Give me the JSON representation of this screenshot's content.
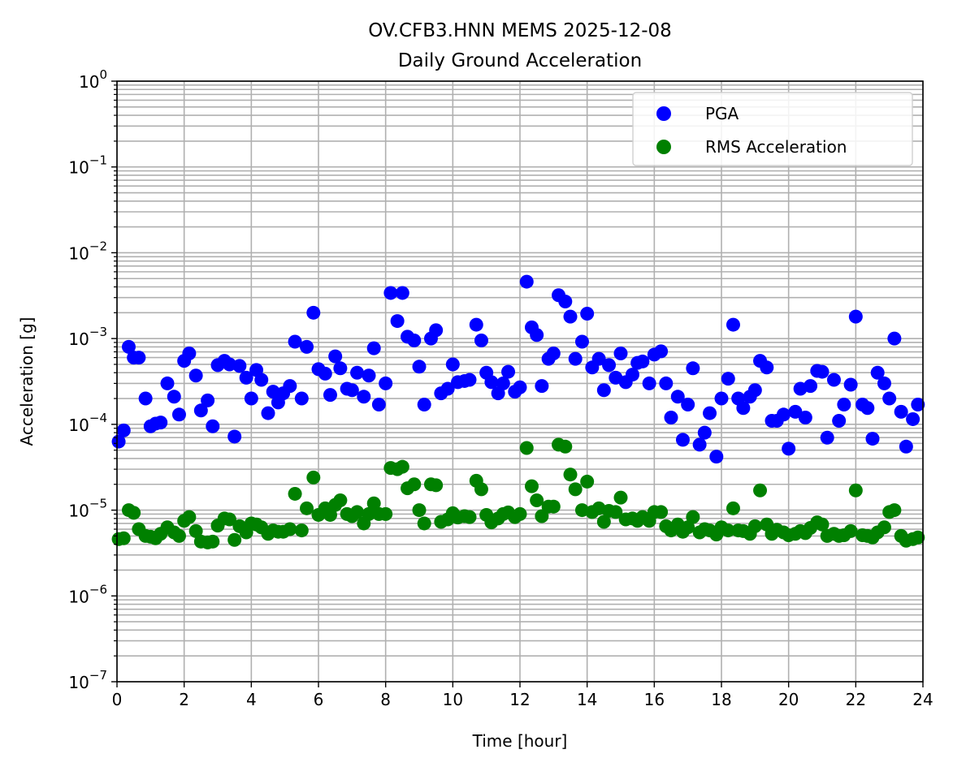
{
  "chart_data": {
    "type": "scatter",
    "title_line1": "OV.CFB3.HNN MEMS 2025-12-08",
    "title_line2": "Daily Ground Acceleration",
    "xlabel": "Time [hour]",
    "ylabel": "Acceleration [g]",
    "xlim": [
      0,
      24
    ],
    "ylim": [
      1e-07,
      1
    ],
    "yscale": "log",
    "grid": true,
    "legend_position": "top-right",
    "xticks": [
      0,
      2,
      4,
      6,
      8,
      10,
      12,
      14,
      16,
      18,
      20,
      22,
      24
    ],
    "yticks": [
      {
        "value": 1e-07,
        "base": "10",
        "exp": "−7"
      },
      {
        "value": 1e-06,
        "base": "10",
        "exp": "−6"
      },
      {
        "value": 1e-05,
        "base": "10",
        "exp": "−5"
      },
      {
        "value": 0.0001,
        "base": "10",
        "exp": "−4"
      },
      {
        "value": 0.001,
        "base": "10",
        "exp": "−3"
      },
      {
        "value": 0.01,
        "base": "10",
        "exp": "−2"
      },
      {
        "value": 0.1,
        "base": "10",
        "exp": "−1"
      },
      {
        "value": 1,
        "base": "10",
        "exp": "0"
      }
    ],
    "series": [
      {
        "name": "PGA",
        "color": "#0000ff",
        "points": [
          [
            0.05,
            6.3e-05
          ],
          [
            0.2,
            8.5e-05
          ],
          [
            0.35,
            0.0008
          ],
          [
            0.5,
            0.0006
          ],
          [
            0.65,
            0.0006
          ],
          [
            0.85,
            0.0002
          ],
          [
            1.0,
            9.5e-05
          ],
          [
            1.15,
            0.000102
          ],
          [
            1.3,
            0.000105
          ],
          [
            1.5,
            0.0003
          ],
          [
            1.7,
            0.00021
          ],
          [
            1.85,
            0.00013
          ],
          [
            2.0,
            0.00055
          ],
          [
            2.15,
            0.00067
          ],
          [
            2.35,
            0.00037
          ],
          [
            2.5,
            0.000145
          ],
          [
            2.7,
            0.00019
          ],
          [
            2.85,
            9.5e-05
          ],
          [
            3.0,
            0.00049
          ],
          [
            3.2,
            0.00055
          ],
          [
            3.35,
            0.0005
          ],
          [
            3.5,
            7.2e-05
          ],
          [
            3.65,
            0.00048
          ],
          [
            3.85,
            0.00035
          ],
          [
            4.0,
            0.0002
          ],
          [
            4.15,
            0.00043
          ],
          [
            4.3,
            0.00033
          ],
          [
            4.5,
            0.000135
          ],
          [
            4.65,
            0.00024
          ],
          [
            4.8,
            0.00018
          ],
          [
            4.95,
            0.00023
          ],
          [
            5.15,
            0.00028
          ],
          [
            5.3,
            0.00092
          ],
          [
            5.5,
            0.0002
          ],
          [
            5.65,
            0.0008
          ],
          [
            5.85,
            0.002
          ],
          [
            6.0,
            0.00044
          ],
          [
            6.2,
            0.00039
          ],
          [
            6.35,
            0.00022
          ],
          [
            6.5,
            0.00062
          ],
          [
            6.65,
            0.00045
          ],
          [
            6.85,
            0.00026
          ],
          [
            7.0,
            0.00025
          ],
          [
            7.15,
            0.0004
          ],
          [
            7.35,
            0.00021
          ],
          [
            7.5,
            0.00037
          ],
          [
            7.65,
            0.00077
          ],
          [
            7.8,
            0.00017
          ],
          [
            8.0,
            0.0003
          ],
          [
            8.15,
            0.0034
          ],
          [
            8.35,
            0.0016
          ],
          [
            8.5,
            0.0034
          ],
          [
            8.65,
            0.00105
          ],
          [
            8.85,
            0.00095
          ],
          [
            9.0,
            0.00047
          ],
          [
            9.15,
            0.00017
          ],
          [
            9.35,
            0.001
          ],
          [
            9.5,
            0.00125
          ],
          [
            9.65,
            0.00023
          ],
          [
            9.85,
            0.00026
          ],
          [
            10.0,
            0.0005
          ],
          [
            10.15,
            0.00031
          ],
          [
            10.35,
            0.00032
          ],
          [
            10.5,
            0.00033
          ],
          [
            10.7,
            0.00145
          ],
          [
            10.85,
            0.00095
          ],
          [
            11.0,
            0.0004
          ],
          [
            11.15,
            0.00031
          ],
          [
            11.35,
            0.00023
          ],
          [
            11.5,
            0.0003
          ],
          [
            11.65,
            0.00041
          ],
          [
            11.85,
            0.00024
          ],
          [
            12.0,
            0.00027
          ],
          [
            12.2,
            0.0046
          ],
          [
            12.35,
            0.00135
          ],
          [
            12.5,
            0.0011
          ],
          [
            12.65,
            0.00028
          ],
          [
            12.85,
            0.00058
          ],
          [
            13.0,
            0.00067
          ],
          [
            13.15,
            0.0032
          ],
          [
            13.35,
            0.0027
          ],
          [
            13.5,
            0.0018
          ],
          [
            13.65,
            0.00058
          ],
          [
            13.85,
            0.00092
          ],
          [
            14.0,
            0.00195
          ],
          [
            14.15,
            0.00046
          ],
          [
            14.35,
            0.00058
          ],
          [
            14.5,
            0.00025
          ],
          [
            14.65,
            0.00049
          ],
          [
            14.85,
            0.00035
          ],
          [
            15.0,
            0.00067
          ],
          [
            15.15,
            0.00031
          ],
          [
            15.35,
            0.00038
          ],
          [
            15.5,
            0.00052
          ],
          [
            15.65,
            0.00054
          ],
          [
            15.85,
            0.0003
          ],
          [
            16.0,
            0.00065
          ],
          [
            16.2,
            0.00071
          ],
          [
            16.35,
            0.0003
          ],
          [
            16.5,
            0.00012
          ],
          [
            16.7,
            0.00021
          ],
          [
            16.85,
            6.6e-05
          ],
          [
            17.0,
            0.00017
          ],
          [
            17.15,
            0.00045
          ],
          [
            17.35,
            5.8e-05
          ],
          [
            17.5,
            8e-05
          ],
          [
            17.65,
            0.000135
          ],
          [
            17.85,
            4.2e-05
          ],
          [
            18.0,
            0.0002
          ],
          [
            18.2,
            0.00034
          ],
          [
            18.35,
            0.00145
          ],
          [
            18.5,
            0.0002
          ],
          [
            18.65,
            0.000155
          ],
          [
            18.85,
            0.00021
          ],
          [
            19.0,
            0.00025
          ],
          [
            19.15,
            0.00055
          ],
          [
            19.35,
            0.00046
          ],
          [
            19.5,
            0.00011
          ],
          [
            19.65,
            0.00011
          ],
          [
            19.85,
            0.00013
          ],
          [
            20.0,
            5.2e-05
          ],
          [
            20.2,
            0.00014
          ],
          [
            20.35,
            0.00026
          ],
          [
            20.5,
            0.00012
          ],
          [
            20.65,
            0.00028
          ],
          [
            20.85,
            0.00042
          ],
          [
            21.0,
            0.00041
          ],
          [
            21.15,
            7e-05
          ],
          [
            21.35,
            0.00033
          ],
          [
            21.5,
            0.00011
          ],
          [
            21.65,
            0.00017
          ],
          [
            21.85,
            0.00029
          ],
          [
            22.0,
            0.0018
          ],
          [
            22.2,
            0.00017
          ],
          [
            22.35,
            0.000155
          ],
          [
            22.5,
            6.8e-05
          ],
          [
            22.65,
            0.0004
          ],
          [
            22.85,
            0.0003
          ],
          [
            23.0,
            0.0002
          ],
          [
            23.15,
            0.001
          ],
          [
            23.35,
            0.00014
          ],
          [
            23.5,
            5.5e-05
          ],
          [
            23.7,
            0.000115
          ],
          [
            23.85,
            0.00017
          ]
        ]
      },
      {
        "name": "RMS Acceleration",
        "color": "#008000",
        "points": [
          [
            0.05,
            4.6e-06
          ],
          [
            0.2,
            4.7e-06
          ],
          [
            0.35,
            1e-05
          ],
          [
            0.5,
            9.3e-06
          ],
          [
            0.65,
            6e-06
          ],
          [
            0.85,
            5e-06
          ],
          [
            1.0,
            4.9e-06
          ],
          [
            1.15,
            4.7e-06
          ],
          [
            1.3,
            5.3e-06
          ],
          [
            1.5,
            6.3e-06
          ],
          [
            1.7,
            5.5e-06
          ],
          [
            1.85,
            5e-06
          ],
          [
            2.0,
            7.5e-06
          ],
          [
            2.15,
            8.3e-06
          ],
          [
            2.35,
            5.7e-06
          ],
          [
            2.5,
            4.3e-06
          ],
          [
            2.7,
            4.2e-06
          ],
          [
            2.85,
            4.3e-06
          ],
          [
            3.0,
            6.6e-06
          ],
          [
            3.2,
            8e-06
          ],
          [
            3.35,
            7.8e-06
          ],
          [
            3.5,
            4.5e-06
          ],
          [
            3.65,
            6.5e-06
          ],
          [
            3.85,
            5.5e-06
          ],
          [
            4.0,
            7e-06
          ],
          [
            4.15,
            6.8e-06
          ],
          [
            4.3,
            6.3e-06
          ],
          [
            4.5,
            5.3e-06
          ],
          [
            4.65,
            5.8e-06
          ],
          [
            4.8,
            5.6e-06
          ],
          [
            4.95,
            5.6e-06
          ],
          [
            5.15,
            6e-06
          ],
          [
            5.3,
            1.55e-05
          ],
          [
            5.5,
            5.8e-06
          ],
          [
            5.65,
            1.05e-05
          ],
          [
            5.85,
            2.4e-05
          ],
          [
            6.0,
            8.8e-06
          ],
          [
            6.2,
            1.05e-05
          ],
          [
            6.35,
            8.8e-06
          ],
          [
            6.5,
            1.15e-05
          ],
          [
            6.65,
            1.3e-05
          ],
          [
            6.85,
            9e-06
          ],
          [
            7.0,
            8.5e-06
          ],
          [
            7.15,
            9.5e-06
          ],
          [
            7.35,
            7e-06
          ],
          [
            7.5,
            9e-06
          ],
          [
            7.65,
            1.2e-05
          ],
          [
            7.8,
            9e-06
          ],
          [
            8.0,
            9e-06
          ],
          [
            8.15,
            3.1e-05
          ],
          [
            8.35,
            3e-05
          ],
          [
            8.5,
            3.2e-05
          ],
          [
            8.65,
            1.8e-05
          ],
          [
            8.85,
            2e-05
          ],
          [
            9.0,
            1e-05
          ],
          [
            9.15,
            7e-06
          ],
          [
            9.35,
            2e-05
          ],
          [
            9.5,
            1.95e-05
          ],
          [
            9.65,
            7.3e-06
          ],
          [
            9.85,
            7.8e-06
          ],
          [
            10.0,
            9.2e-06
          ],
          [
            10.15,
            8.2e-06
          ],
          [
            10.35,
            8.5e-06
          ],
          [
            10.5,
            8.3e-06
          ],
          [
            10.7,
            2.2e-05
          ],
          [
            10.85,
            1.75e-05
          ],
          [
            11.0,
            8.8e-06
          ],
          [
            11.15,
            7.2e-06
          ],
          [
            11.35,
            8e-06
          ],
          [
            11.5,
            9e-06
          ],
          [
            11.65,
            9.4e-06
          ],
          [
            11.85,
            8.3e-06
          ],
          [
            12.0,
            9e-06
          ],
          [
            12.2,
            5.3e-05
          ],
          [
            12.35,
            1.9e-05
          ],
          [
            12.5,
            1.3e-05
          ],
          [
            12.65,
            8.5e-06
          ],
          [
            12.85,
            1.1e-05
          ],
          [
            13.0,
            1.1e-05
          ],
          [
            13.15,
            5.8e-05
          ],
          [
            13.35,
            5.5e-05
          ],
          [
            13.5,
            2.6e-05
          ],
          [
            13.65,
            1.75e-05
          ],
          [
            13.85,
            1e-05
          ],
          [
            14.0,
            2.15e-05
          ],
          [
            14.15,
            9.5e-06
          ],
          [
            14.35,
            1.05e-05
          ],
          [
            14.5,
            7.3e-06
          ],
          [
            14.65,
            9.8e-06
          ],
          [
            14.85,
            9.5e-06
          ],
          [
            15.0,
            1.4e-05
          ],
          [
            15.15,
            7.8e-06
          ],
          [
            15.35,
            8e-06
          ],
          [
            15.5,
            7.5e-06
          ],
          [
            15.65,
            8.3e-06
          ],
          [
            15.85,
            7.5e-06
          ],
          [
            16.0,
            9.5e-06
          ],
          [
            16.2,
            9.5e-06
          ],
          [
            16.35,
            6.5e-06
          ],
          [
            16.5,
            5.8e-06
          ],
          [
            16.7,
            6.8e-06
          ],
          [
            16.85,
            5.6e-06
          ],
          [
            17.0,
            6.3e-06
          ],
          [
            17.15,
            8.3e-06
          ],
          [
            17.35,
            5.5e-06
          ],
          [
            17.5,
            6e-06
          ],
          [
            17.65,
            5.8e-06
          ],
          [
            17.85,
            5.2e-06
          ],
          [
            18.0,
            6.3e-06
          ],
          [
            18.2,
            5.8e-06
          ],
          [
            18.35,
            1.05e-05
          ],
          [
            18.5,
            5.8e-06
          ],
          [
            18.65,
            5.7e-06
          ],
          [
            18.85,
            5.3e-06
          ],
          [
            19.0,
            6.5e-06
          ],
          [
            19.15,
            1.7e-05
          ],
          [
            19.35,
            6.8e-06
          ],
          [
            19.5,
            5.3e-06
          ],
          [
            19.65,
            5.9e-06
          ],
          [
            19.85,
            5.5e-06
          ],
          [
            20.0,
            5.1e-06
          ],
          [
            20.2,
            5.3e-06
          ],
          [
            20.35,
            5.7e-06
          ],
          [
            20.5,
            5.4e-06
          ],
          [
            20.65,
            6.2e-06
          ],
          [
            20.85,
            7.2e-06
          ],
          [
            21.0,
            6.8e-06
          ],
          [
            21.15,
            5e-06
          ],
          [
            21.35,
            5.3e-06
          ],
          [
            21.5,
            5e-06
          ],
          [
            21.65,
            5.1e-06
          ],
          [
            21.85,
            5.7e-06
          ],
          [
            22.0,
            1.7e-05
          ],
          [
            22.2,
            5.1e-06
          ],
          [
            22.35,
            5e-06
          ],
          [
            22.5,
            4.8e-06
          ],
          [
            22.65,
            5.5e-06
          ],
          [
            22.85,
            6.3e-06
          ],
          [
            23.0,
            9.5e-06
          ],
          [
            23.15,
            1e-05
          ],
          [
            23.35,
            5e-06
          ],
          [
            23.5,
            4.4e-06
          ],
          [
            23.7,
            4.6e-06
          ],
          [
            23.85,
            4.8e-06
          ]
        ]
      }
    ]
  }
}
